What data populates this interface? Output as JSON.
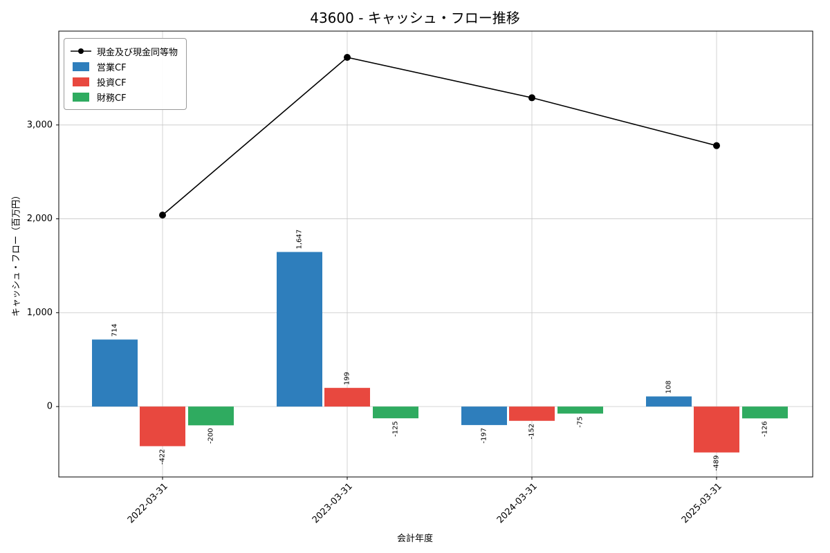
{
  "title": "43600 - キャッシュ・フロー推移",
  "chart_data": {
    "type": "bar",
    "title": "43600 - キャッシュ・フロー推移",
    "xlabel": "会計年度",
    "ylabel": "キャッシュ・フロー（百万円）",
    "categories": [
      "2022-03-31",
      "2023-03-31",
      "2024-03-31",
      "2025-03-31"
    ],
    "series": [
      {
        "name": "営業CF",
        "type": "bar",
        "color": "#2e7ebc",
        "values": [
          714,
          1647,
          -197,
          108
        ]
      },
      {
        "name": "投資CF",
        "type": "bar",
        "color": "#e8483f",
        "values": [
          -422,
          199,
          -152,
          -489
        ]
      },
      {
        "name": "財務CF",
        "type": "bar",
        "color": "#2fab60",
        "values": [
          -200,
          -125,
          -75,
          -126
        ]
      }
    ],
    "line_series": {
      "name": "現金及び現金同等物",
      "color": "#000000",
      "values": [
        2040,
        3720,
        3290,
        2780
      ]
    },
    "yticks": [
      0,
      1000,
      2000,
      3000
    ],
    "ylim": [
      -750,
      4000
    ],
    "grid": true,
    "legend_position": "upper-left",
    "grid_color": "#c8c8c8",
    "frame_color": "#000000"
  }
}
